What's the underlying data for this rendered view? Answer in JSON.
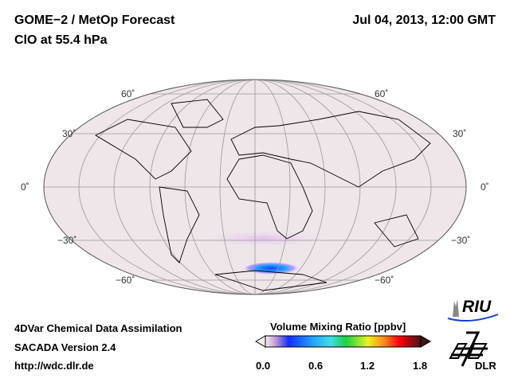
{
  "header": {
    "title": "GOME−2 / MetOp Forecast",
    "subtitle": "ClO at 55.4 hPa",
    "datetime": "Jul 04, 2013, 12:00 GMT"
  },
  "map": {
    "lat_labels": [
      "60˚",
      "30˚",
      "0˚",
      "−30˚",
      "−60˚"
    ],
    "projection": "global ellipse",
    "feature_max_color": "#1a5cff"
  },
  "footer": {
    "line1": "4DVar Chemical Data Assimilation",
    "line2": "SACADA Version 2.4",
    "line3": "http://wdc.dlr.de"
  },
  "colorbar": {
    "title": "Volume Mixing Ratio [ppbv]",
    "ticks": [
      "0.0",
      "0.6",
      "1.2",
      "1.8"
    ],
    "min": 0.0,
    "max": 1.8
  },
  "logos": {
    "riu": "RIU",
    "dlr": "DLR"
  }
}
